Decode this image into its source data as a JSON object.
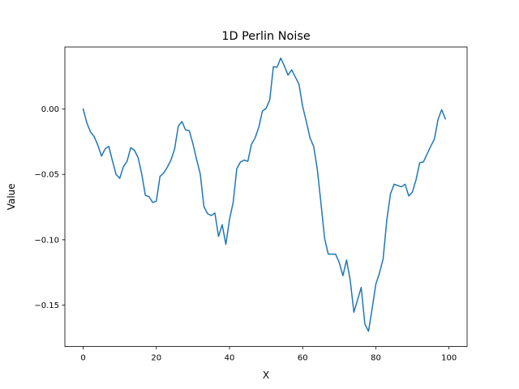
{
  "chart_data": {
    "type": "line",
    "title": "1D Perlin Noise",
    "xlabel": "X",
    "ylabel": "Value",
    "xlim": [
      -5,
      104.95
    ],
    "ylim": [
      -0.1817,
      0.0475
    ],
    "xticks": [
      0,
      20,
      40,
      60,
      80,
      100
    ],
    "xtick_labels": [
      "0",
      "20",
      "40",
      "60",
      "80",
      "100"
    ],
    "yticks": [
      0.0,
      -0.05,
      -0.1,
      -0.15
    ],
    "ytick_labels": [
      "0.00",
      "−0.05",
      "−0.10",
      "−0.15"
    ],
    "grid": false,
    "series": [
      {
        "color": "#1f77b4",
        "x": [
          0,
          1,
          2,
          3,
          4,
          5,
          6,
          7,
          8,
          9,
          10,
          11,
          12,
          13,
          14,
          15,
          16,
          17,
          18,
          19,
          20,
          21,
          22,
          23,
          24,
          25,
          26,
          27,
          28,
          29,
          30,
          31,
          32,
          33,
          34,
          35,
          36,
          37,
          38,
          39,
          40,
          41,
          42,
          43,
          44,
          45,
          46,
          47,
          48,
          49,
          50,
          51,
          52,
          53,
          54,
          55,
          56,
          57,
          58,
          59,
          60,
          61,
          62,
          63,
          64,
          65,
          66,
          67,
          68,
          69,
          70,
          71,
          72,
          73,
          74,
          75,
          76,
          77,
          78,
          79,
          80,
          81,
          82,
          83,
          84,
          85,
          86,
          87,
          88,
          89,
          90,
          91,
          92,
          93,
          94,
          95,
          96,
          97,
          98,
          99
        ],
        "values": [
          0.0,
          -0.0105,
          -0.0175,
          -0.021,
          -0.0275,
          -0.036,
          -0.0305,
          -0.0285,
          -0.0395,
          -0.05,
          -0.053,
          -0.044,
          -0.04,
          -0.0295,
          -0.0315,
          -0.037,
          -0.0495,
          -0.066,
          -0.067,
          -0.0715,
          -0.0705,
          -0.0515,
          -0.049,
          -0.0445,
          -0.039,
          -0.0305,
          -0.013,
          -0.0095,
          -0.016,
          -0.0165,
          -0.0265,
          -0.0385,
          -0.0495,
          -0.0745,
          -0.08,
          -0.0815,
          -0.0795,
          -0.0975,
          -0.0885,
          -0.1035,
          -0.0845,
          -0.0715,
          -0.0455,
          -0.0405,
          -0.039,
          -0.04,
          -0.027,
          -0.022,
          -0.014,
          -0.0015,
          0.0005,
          0.007,
          0.0325,
          0.032,
          0.039,
          0.033,
          0.026,
          0.03,
          0.0245,
          0.019,
          0.002,
          -0.0095,
          -0.022,
          -0.0285,
          -0.046,
          -0.072,
          -0.099,
          -0.111,
          -0.111,
          -0.111,
          -0.1175,
          -0.1275,
          -0.1155,
          -0.131,
          -0.1555,
          -0.146,
          -0.1365,
          -0.1645,
          -0.17,
          -0.1525,
          -0.134,
          -0.1255,
          -0.1145,
          -0.085,
          -0.065,
          -0.0575,
          -0.0585,
          -0.0595,
          -0.0575,
          -0.0665,
          -0.0635,
          -0.054,
          -0.041,
          -0.0405,
          -0.0345,
          -0.0285,
          -0.023,
          -0.008,
          -0.0005,
          -0.0075
        ]
      }
    ]
  }
}
